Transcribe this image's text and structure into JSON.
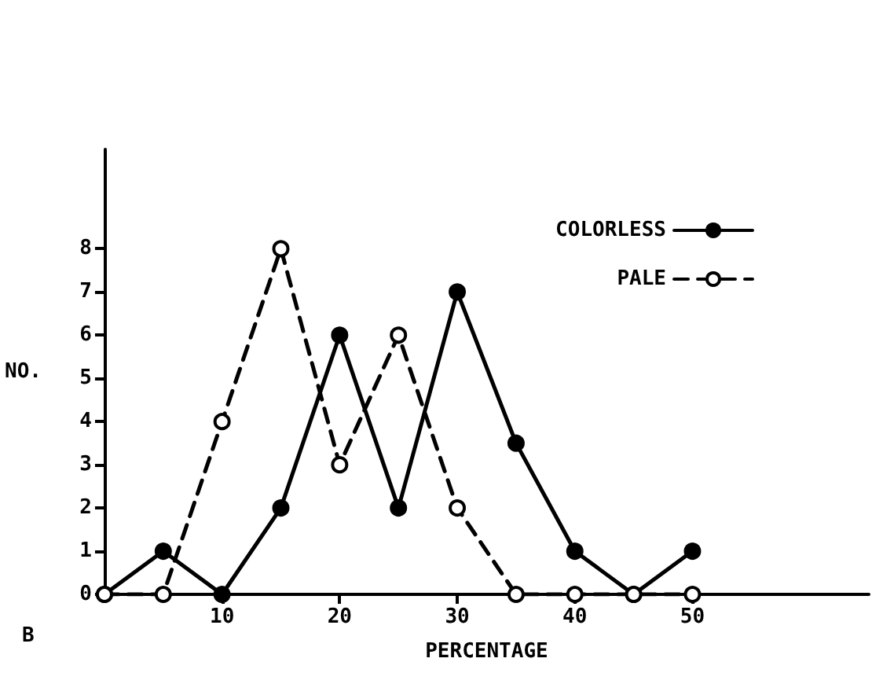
{
  "chart_data": {
    "type": "line",
    "xlabel": "PERCENTAGE",
    "ylabel": "NO.",
    "x": [
      0,
      5,
      10,
      15,
      20,
      25,
      30,
      35,
      40,
      45,
      50
    ],
    "series": [
      {
        "name": "COLORLESS",
        "color": "#000000",
        "line_style": "solid",
        "values": [
          0,
          1,
          0,
          2,
          6,
          2,
          7,
          3.5,
          1,
          0,
          1
        ]
      },
      {
        "name": "PALE",
        "color": "#000000",
        "line_style": "dashed",
        "values": [
          0,
          0,
          4,
          8,
          3,
          6,
          2,
          0,
          0,
          0,
          0
        ]
      }
    ],
    "xlim": [
      0,
      65
    ],
    "xticks": [
      10,
      20,
      30,
      40,
      50
    ],
    "ylim": [
      0,
      10.3
    ],
    "yticks": [
      0,
      1,
      2,
      3,
      4,
      5,
      6,
      7,
      8
    ],
    "marker": "circle",
    "grid": false,
    "legend": "top right",
    "annotations": [
      "B"
    ]
  }
}
